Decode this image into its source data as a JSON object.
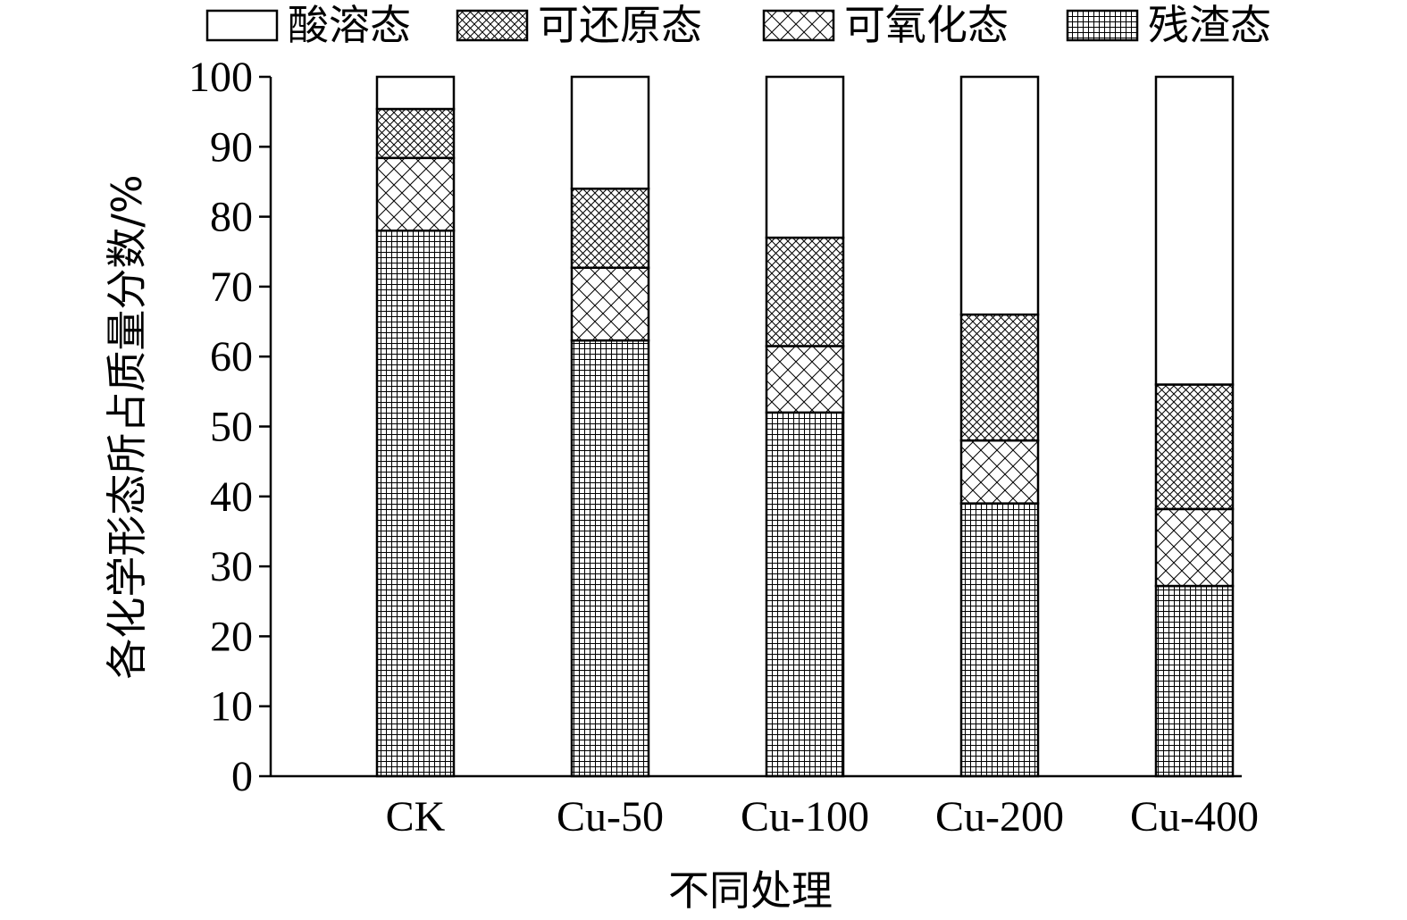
{
  "chart_data": {
    "type": "bar",
    "stacked": true,
    "categories": [
      "CK",
      "Cu-50",
      "Cu-100",
      "Cu-200",
      "Cu-400"
    ],
    "series": [
      {
        "name": "残渣态",
        "pattern": "fine-grid",
        "values": [
          78,
          62.3,
          52,
          39,
          27.2
        ]
      },
      {
        "name": "可氧化态",
        "pattern": "cross-hatch-wide",
        "values": [
          10.4,
          10.4,
          9.5,
          9,
          11
        ]
      },
      {
        "name": "可还原态",
        "pattern": "cross-hatch-dense",
        "values": [
          7,
          11.3,
          15.5,
          18,
          17.8
        ]
      },
      {
        "name": "酸溶态",
        "pattern": "blank",
        "values": [
          4.6,
          16,
          23,
          34,
          44
        ]
      }
    ],
    "legend_order": [
      "酸溶态",
      "可还原态",
      "可氧化态",
      "残渣态"
    ],
    "legend_position": "top",
    "xlabel": "不同处理",
    "ylabel": "各化学形态所占质量分数/%",
    "ylim": [
      0,
      100
    ],
    "yticks": [
      0,
      10,
      20,
      30,
      40,
      50,
      60,
      70,
      80,
      90,
      100
    ],
    "grid": false
  }
}
